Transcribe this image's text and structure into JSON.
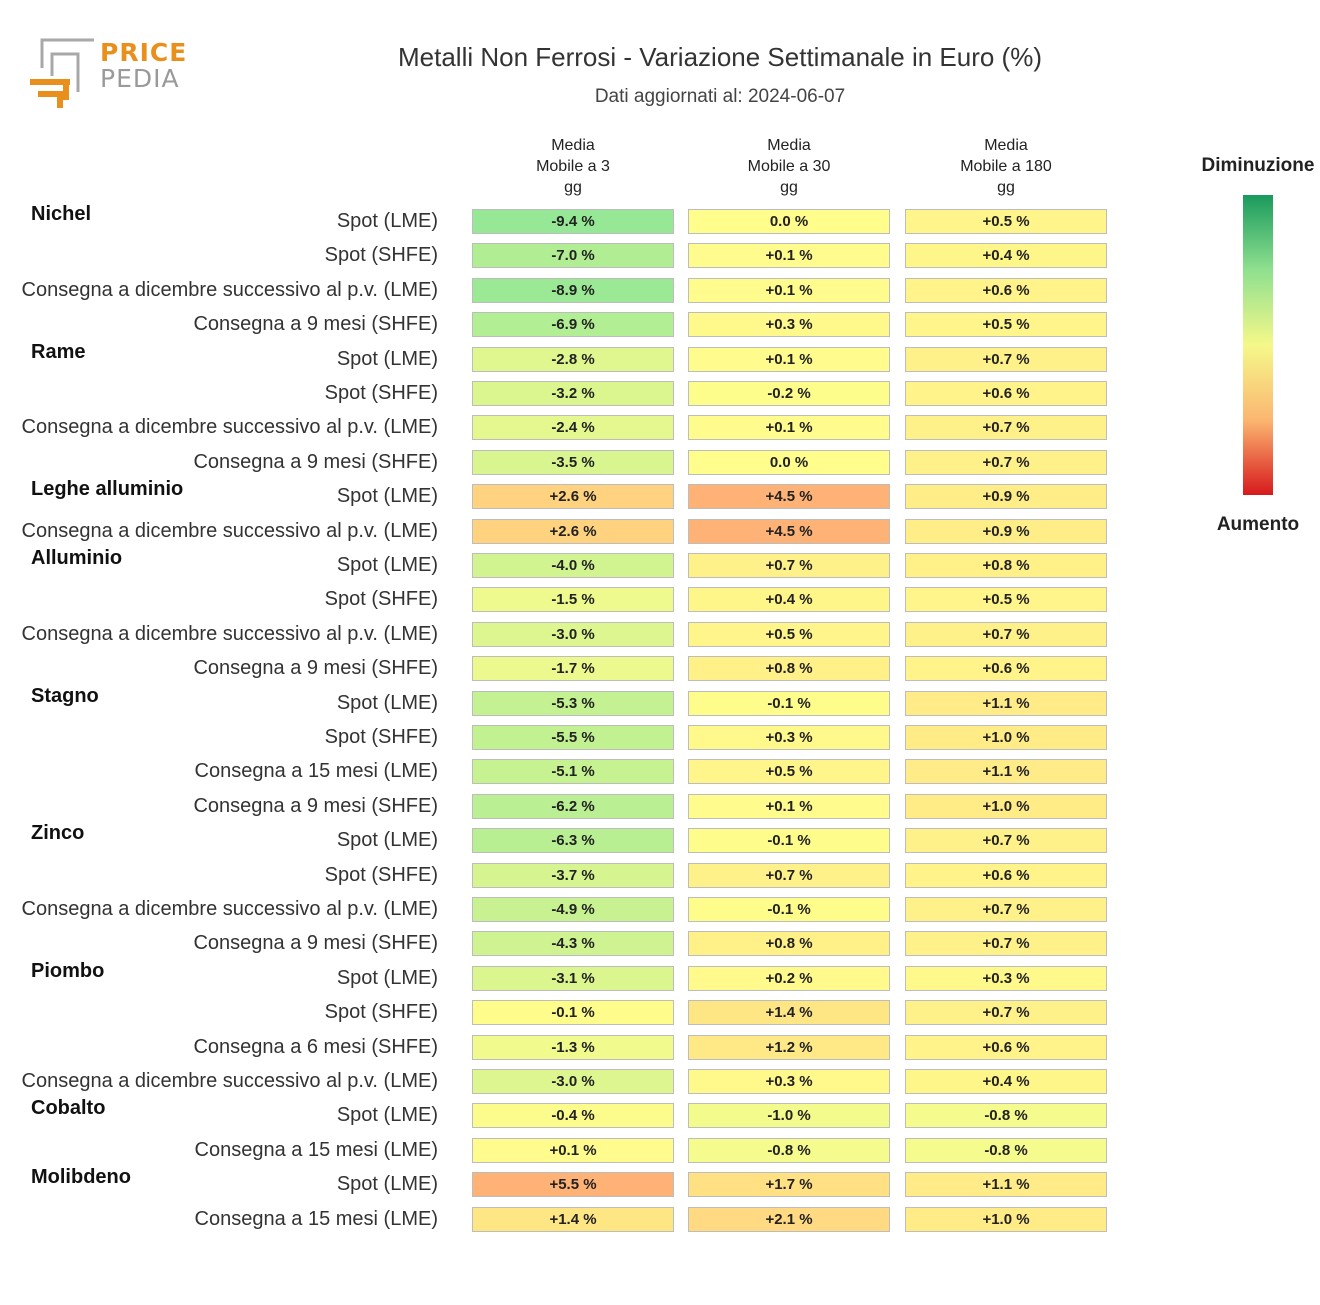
{
  "logo": {
    "price": "PRICE",
    "pedia": "PEDIA"
  },
  "header": {
    "title": "Metalli Non Ferrosi - Variazione Settimanale in Euro (%)",
    "subtitle": "Dati aggiornati al: 2024-06-07"
  },
  "legend": {
    "top": "Diminuzione",
    "bottom": "Aumento"
  },
  "chart_data": {
    "type": "heatmap",
    "columns": [
      "Media\nMobile a 3\ngg",
      "Media\nMobile a 30\ngg",
      "Media\nMobile a 180\ngg"
    ],
    "groups": [
      {
        "name": "Nichel",
        "rows": [
          {
            "label": "Spot (LME)",
            "values": [
              -9.4,
              0.0,
              0.5
            ]
          },
          {
            "label": "Spot (SHFE)",
            "values": [
              -7.0,
              0.1,
              0.4
            ]
          },
          {
            "label": "Consegna a dicembre successivo al p.v. (LME)",
            "values": [
              -8.9,
              0.1,
              0.6
            ]
          },
          {
            "label": "Consegna a 9 mesi (SHFE)",
            "values": [
              -6.9,
              0.3,
              0.5
            ]
          }
        ]
      },
      {
        "name": "Rame",
        "rows": [
          {
            "label": "Spot (LME)",
            "values": [
              -2.8,
              0.1,
              0.7
            ]
          },
          {
            "label": "Spot (SHFE)",
            "values": [
              -3.2,
              -0.2,
              0.6
            ]
          },
          {
            "label": "Consegna a dicembre successivo al p.v. (LME)",
            "values": [
              -2.4,
              0.1,
              0.7
            ]
          },
          {
            "label": "Consegna a 9 mesi (SHFE)",
            "values": [
              -3.5,
              0.0,
              0.7
            ]
          }
        ]
      },
      {
        "name": "Leghe alluminio",
        "rows": [
          {
            "label": "Spot (LME)",
            "values": [
              2.6,
              4.5,
              0.9
            ]
          },
          {
            "label": "Consegna a dicembre successivo al p.v. (LME)",
            "values": [
              2.6,
              4.5,
              0.9
            ]
          }
        ]
      },
      {
        "name": "Alluminio",
        "rows": [
          {
            "label": "Spot (LME)",
            "values": [
              -4.0,
              0.7,
              0.8
            ]
          },
          {
            "label": "Spot (SHFE)",
            "values": [
              -1.5,
              0.4,
              0.5
            ]
          },
          {
            "label": "Consegna a dicembre successivo al p.v. (LME)",
            "values": [
              -3.0,
              0.5,
              0.7
            ]
          },
          {
            "label": "Consegna a 9 mesi (SHFE)",
            "values": [
              -1.7,
              0.8,
              0.6
            ]
          }
        ]
      },
      {
        "name": "Stagno",
        "rows": [
          {
            "label": "Spot (LME)",
            "values": [
              -5.3,
              -0.1,
              1.1
            ]
          },
          {
            "label": "Spot (SHFE)",
            "values": [
              -5.5,
              0.3,
              1.0
            ]
          },
          {
            "label": "Consegna a 15 mesi (LME)",
            "values": [
              -5.1,
              0.5,
              1.1
            ]
          },
          {
            "label": "Consegna a 9 mesi (SHFE)",
            "values": [
              -6.2,
              0.1,
              1.0
            ]
          }
        ]
      },
      {
        "name": "Zinco",
        "rows": [
          {
            "label": "Spot (LME)",
            "values": [
              -6.3,
              -0.1,
              0.7
            ]
          },
          {
            "label": "Spot (SHFE)",
            "values": [
              -3.7,
              0.7,
              0.6
            ]
          },
          {
            "label": "Consegna a dicembre successivo al p.v. (LME)",
            "values": [
              -4.9,
              -0.1,
              0.7
            ]
          },
          {
            "label": "Consegna a 9 mesi (SHFE)",
            "values": [
              -4.3,
              0.8,
              0.7
            ]
          }
        ]
      },
      {
        "name": "Piombo",
        "rows": [
          {
            "label": "Spot (LME)",
            "values": [
              -3.1,
              0.2,
              0.3
            ]
          },
          {
            "label": "Spot (SHFE)",
            "values": [
              -0.1,
              1.4,
              0.7
            ]
          },
          {
            "label": "Consegna a 6 mesi (SHFE)",
            "values": [
              -1.3,
              1.2,
              0.6
            ]
          },
          {
            "label": "Consegna a dicembre successivo al p.v. (LME)",
            "values": [
              -3.0,
              0.3,
              0.4
            ]
          }
        ]
      },
      {
        "name": "Cobalto",
        "rows": [
          {
            "label": "Spot (LME)",
            "values": [
              -0.4,
              -1.0,
              -0.8
            ]
          },
          {
            "label": "Consegna a 15 mesi (LME)",
            "values": [
              0.1,
              -0.8,
              -0.8
            ]
          }
        ]
      },
      {
        "name": "Molibdeno",
        "rows": [
          {
            "label": "Spot (LME)",
            "values": [
              5.5,
              1.7,
              1.1
            ]
          },
          {
            "label": "Consegna a 15 mesi (LME)",
            "values": [
              1.4,
              2.1,
              1.0
            ]
          }
        ]
      }
    ]
  }
}
